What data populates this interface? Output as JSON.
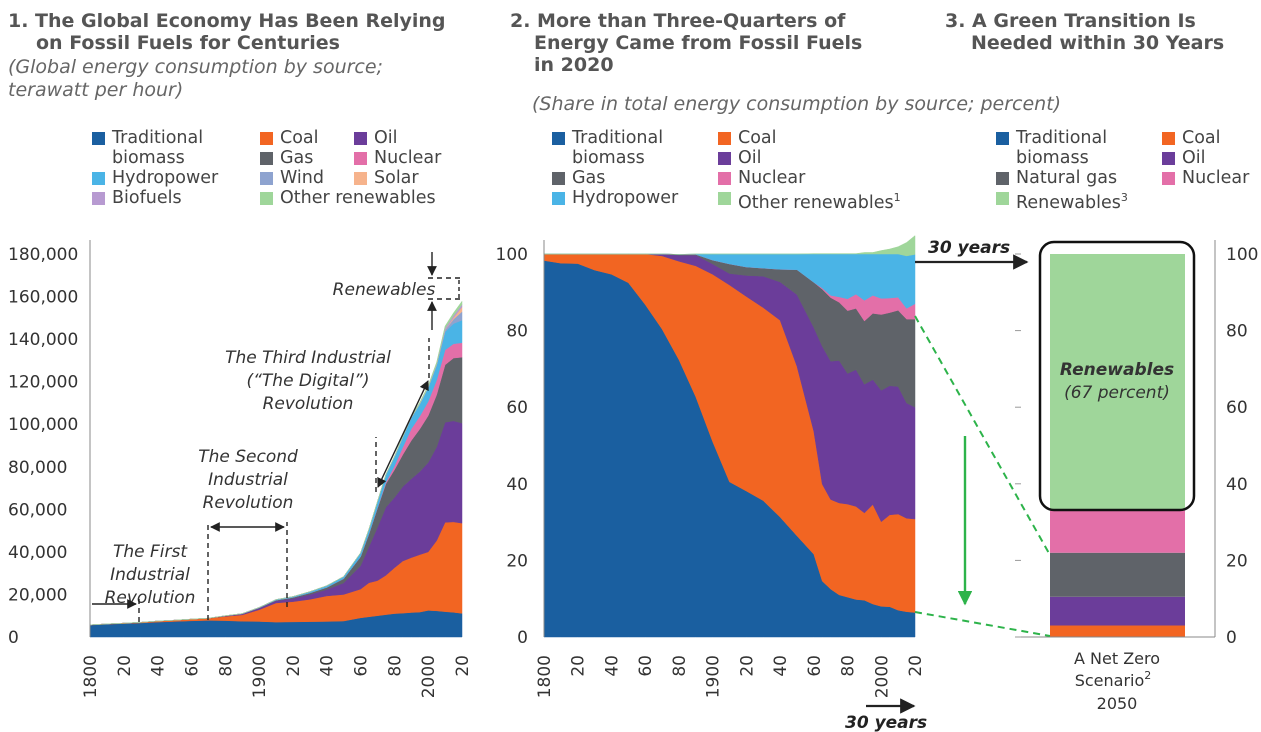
{
  "colors": {
    "traditional_biomass": "#1a5fa0",
    "coal": "#f26522",
    "oil": "#6b3d9a",
    "gas": "#5f6369",
    "nuclear": "#e36fa8",
    "hydropower": "#4ab4e6",
    "wind": "#8ea3cf",
    "solar": "#f6b38c",
    "biofuels": "#b79ad1",
    "other_renewables": "#9fd69a"
  },
  "panel1": {
    "title_line1": "1. The Global Economy Has Been Relying",
    "title_line2": "on Fossil Fuels for Centuries",
    "subtitle_line1": "(Global energy consumption by source;",
    "subtitle_line2": "terawatt per hour)",
    "legend": {
      "traditional_1": "Traditional",
      "traditional_2": "biomass",
      "coal": "Coal",
      "oil": "Oil",
      "gas": "Gas",
      "nuclear": "Nuclear",
      "hydropower": "Hydropower",
      "wind": "Wind",
      "solar": "Solar",
      "biofuels": "Biofuels",
      "other_renewables": "Other renewables"
    },
    "annotations": {
      "first_1": "The First",
      "first_2": "Industrial",
      "first_3": "Revolution",
      "second_1": "The Second",
      "second_2": "Industrial",
      "second_3": "Revolution",
      "third_1": "The Third Industrial",
      "third_2": "(“The Digital”)",
      "third_3": "Revolution",
      "renewables": "Renewables"
    }
  },
  "panel2": {
    "title_line1": "2. More than Three-Quarters of",
    "title_line2": "Energy Came from Fossil Fuels",
    "title_line3": "in 2020",
    "subtitle": "(Share in total energy consumption by source; percent)",
    "legend": {
      "traditional_1": "Traditional",
      "traditional_2": "biomass",
      "coal": "Coal",
      "oil": "Oil",
      "gas": "Gas",
      "nuclear": "Nuclear",
      "hydropower": "Hydropower",
      "other_renewables": "Other renewables",
      "other_renewables_sup": "1"
    },
    "arrow_label": "30 years"
  },
  "panel3": {
    "title_line1": "3. A Green Transition Is",
    "title_line2": "Needed within 30 Years",
    "legend": {
      "traditional_1": "Traditional",
      "traditional_2": "biomass",
      "coal": "Coal",
      "oil": "Oil",
      "natural_gas": "Natural gas",
      "nuclear": "Nuclear",
      "renewables": "Renewables",
      "renewables_sup": "3"
    },
    "arrow_label": "30 years",
    "bar_label_1": "Renewables",
    "bar_label_2": "(67 percent)",
    "x_label_1": "A Net Zero",
    "x_label_2": "Scenario",
    "x_label_sup": "2",
    "x_label_3": "2050"
  },
  "chart_data": [
    {
      "type": "area",
      "title": "1. The Global Economy Has Been Relying on Fossil Fuels for Centuries",
      "subtitle": "(Global energy consumption by source; terawatt per hour)",
      "stacked": true,
      "ylim": [
        0,
        180000
      ],
      "yticks": [
        "0",
        "20,000",
        "40,000",
        "60,000",
        "80,000",
        "100,000",
        "120,000",
        "140,000",
        "160,000",
        "180,000"
      ],
      "xticks": [
        "1800",
        "20",
        "40",
        "60",
        "80",
        "1900",
        "20",
        "40",
        "60",
        "80",
        "2000",
        "20"
      ],
      "x": [
        1800,
        1810,
        1820,
        1830,
        1840,
        1850,
        1860,
        1870,
        1880,
        1890,
        1900,
        1910,
        1920,
        1930,
        1940,
        1950,
        1960,
        1965,
        1970,
        1975,
        1980,
        1985,
        1990,
        1995,
        2000,
        2005,
        2010,
        2015,
        2020
      ],
      "series": [
        {
          "name": "Traditional biomass",
          "values": [
            5600,
            6000,
            6300,
            6600,
            7000,
            7300,
            7600,
            7800,
            7700,
            7400,
            7300,
            7000,
            7100,
            7200,
            7300,
            7500,
            9000,
            9500,
            10000,
            10500,
            11000,
            11200,
            11500,
            11700,
            12500,
            12300,
            11900,
            11600,
            11100
          ]
        },
        {
          "name": "Coal",
          "values": [
            100,
            150,
            200,
            300,
            500,
            600,
            800,
            1000,
            2000,
            3000,
            5500,
            9000,
            9500,
            10500,
            12000,
            12500,
            13500,
            16000,
            16500,
            18500,
            21500,
            24500,
            25800,
            27000,
            27500,
            33000,
            42000,
            42500,
            42400
          ]
        },
        {
          "name": "Oil",
          "values": [
            0,
            0,
            0,
            0,
            0,
            0,
            0,
            50,
            200,
            400,
            700,
            1000,
            1500,
            2300,
            3000,
            5400,
            11000,
            17000,
            25000,
            32000,
            33000,
            35000,
            37000,
            39000,
            42000,
            44000,
            47000,
            47500,
            47000
          ]
        },
        {
          "name": "Gas",
          "values": [
            0,
            0,
            0,
            0,
            0,
            0,
            0,
            0,
            50,
            100,
            200,
            300,
            500,
            700,
            1000,
            2000,
            4200,
            6000,
            9000,
            11000,
            13000,
            15000,
            18000,
            20000,
            22000,
            24500,
            27000,
            29500,
            31000
          ]
        },
        {
          "name": "Nuclear",
          "values": [
            0,
            0,
            0,
            0,
            0,
            0,
            0,
            0,
            0,
            0,
            0,
            0,
            0,
            0,
            0,
            0,
            5,
            50,
            150,
            700,
            1800,
            3500,
            5500,
            6000,
            6700,
            6900,
            7000,
            6700,
            6800
          ]
        },
        {
          "name": "Hydropower",
          "values": [
            0,
            0,
            0,
            0,
            0,
            0,
            0,
            0,
            50,
            100,
            200,
            300,
            400,
            600,
            800,
            1000,
            1800,
            2200,
            3000,
            3700,
            4300,
            4800,
            5200,
            5800,
            6500,
            7000,
            8500,
            9500,
            10600
          ]
        },
        {
          "name": "Wind",
          "values": [
            0,
            0,
            0,
            0,
            0,
            0,
            0,
            0,
            0,
            0,
            0,
            0,
            0,
            0,
            0,
            0,
            0,
            0,
            0,
            0,
            0,
            0,
            10,
            20,
            80,
            250,
            850,
            2100,
            4000
          ]
        },
        {
          "name": "Solar",
          "values": [
            0,
            0,
            0,
            0,
            0,
            0,
            0,
            0,
            0,
            0,
            0,
            0,
            0,
            0,
            0,
            0,
            0,
            0,
            0,
            0,
            0,
            0,
            0,
            0,
            5,
            10,
            80,
            650,
            2200
          ]
        },
        {
          "name": "Biofuels",
          "values": [
            0,
            0,
            0,
            0,
            0,
            0,
            0,
            0,
            0,
            0,
            0,
            0,
            0,
            0,
            0,
            0,
            0,
            0,
            0,
            0,
            50,
            100,
            150,
            150,
            200,
            350,
            800,
            1000,
            1100
          ]
        },
        {
          "name": "Other renewables",
          "values": [
            0,
            0,
            0,
            0,
            0,
            0,
            0,
            0,
            0,
            0,
            0,
            0,
            0,
            0,
            0,
            0,
            50,
            80,
            100,
            150,
            250,
            350,
            450,
            600,
            700,
            800,
            1000,
            1300,
            1600
          ]
        }
      ]
    },
    {
      "type": "area",
      "title": "2. More than Three-Quarters of Energy Came from Fossil Fuels in 2020",
      "subtitle": "(Share in total energy consumption by source; percent)",
      "stacked": true,
      "ylim": [
        0,
        100
      ],
      "yticks": [
        "0",
        "20",
        "40",
        "60",
        "80",
        "100"
      ],
      "xticks": [
        "1800",
        "20",
        "40",
        "60",
        "80",
        "1900",
        "20",
        "40",
        "60",
        "80",
        "2000",
        "20"
      ],
      "x": [
        1800,
        1810,
        1820,
        1830,
        1840,
        1850,
        1860,
        1870,
        1880,
        1890,
        1900,
        1910,
        1920,
        1930,
        1940,
        1950,
        1960,
        1965,
        1970,
        1975,
        1980,
        1985,
        1990,
        1995,
        2000,
        2005,
        2010,
        2015,
        2020
      ],
      "series": [
        {
          "name": "Traditional biomass",
          "values": [
            98.3,
            97.6,
            97.5,
            95.8,
            94.7,
            92.5,
            86.8,
            80.4,
            72.4,
            62.7,
            51.0,
            40.5,
            38.1,
            35.6,
            31.3,
            26.4,
            21.6,
            14.6,
            12.5,
            11.0,
            10.4,
            9.8,
            9.6,
            8.6,
            8.0,
            7.9,
            7.0,
            6.6,
            6.4
          ]
        },
        {
          "name": "Coal",
          "values": [
            1.7,
            2.4,
            2.5,
            4.2,
            5.3,
            7.5,
            13.2,
            19.1,
            25.7,
            34.2,
            43.7,
            51.4,
            50.8,
            50.4,
            51.4,
            44.3,
            32.1,
            25.3,
            23.4,
            24.0,
            24.3,
            24.3,
            22.8,
            26.0,
            22.1,
            24.0,
            25.1,
            24.4,
            24.4
          ]
        },
        {
          "name": "Oil",
          "values": [
            0,
            0,
            0,
            0,
            0,
            0,
            0,
            0.5,
            1.6,
            2.8,
            2.7,
            3.0,
            5.5,
            8.2,
            10.0,
            18.7,
            27.1,
            36.0,
            36.1,
            37.2,
            34.1,
            35.7,
            33.6,
            32.6,
            34.3,
            33.7,
            33.3,
            30.1,
            29.2
          ]
        },
        {
          "name": "Gas",
          "values": [
            0,
            0,
            0,
            0,
            0,
            0,
            0,
            0,
            0.2,
            0.2,
            1.0,
            2.5,
            2.2,
            2.1,
            3.3,
            6.5,
            11.8,
            14.9,
            16.6,
            15.2,
            16.4,
            16.0,
            16.5,
            17.3,
            19.8,
            19.1,
            19.9,
            21.9,
            23.0
          ]
        },
        {
          "name": "Nuclear",
          "values": [
            0,
            0,
            0,
            0,
            0,
            0,
            0,
            0,
            0,
            0,
            0,
            0,
            0,
            0,
            0,
            0,
            0,
            0.3,
            0.6,
            1.4,
            3.1,
            3.7,
            5.4,
            4.7,
            4.2,
            3.8,
            3.4,
            2.8,
            4.0
          ]
        },
        {
          "name": "Hydropower",
          "values": [
            0,
            0,
            0,
            0,
            0,
            0,
            0,
            0,
            0,
            0.1,
            1.6,
            2.6,
            3.4,
            3.7,
            4.0,
            4.1,
            7.4,
            8.9,
            10.8,
            11.2,
            11.7,
            10.5,
            12.1,
            10.8,
            11.6,
            11.5,
            11.3,
            13.7,
            12.9
          ]
        },
        {
          "name": "Other renewables",
          "values": [
            0,
            0,
            0,
            0,
            0,
            0,
            0,
            0,
            0,
            0,
            0,
            0,
            0,
            0,
            0,
            0,
            0.1,
            0.1,
            0.1,
            0.1,
            0.1,
            0.1,
            0.4,
            0.4,
            0.9,
            1.3,
            1.9,
            3.5,
            4.9
          ]
        }
      ]
    },
    {
      "type": "bar",
      "title": "3. A Green Transition Is Needed within 30 Years",
      "stacked": true,
      "categories": [
        "A Net Zero Scenario 2050"
      ],
      "ylim": [
        0,
        100
      ],
      "yticks": [
        "0",
        "20",
        "40",
        "60",
        "80",
        "100"
      ],
      "series": [
        {
          "name": "Traditional biomass",
          "values": [
            0
          ]
        },
        {
          "name": "Coal",
          "values": [
            3
          ]
        },
        {
          "name": "Oil",
          "values": [
            7.5
          ]
        },
        {
          "name": "Natural gas",
          "values": [
            11.5
          ]
        },
        {
          "name": "Nuclear",
          "values": [
            11
          ]
        },
        {
          "name": "Renewables",
          "values": [
            67
          ]
        }
      ],
      "annotations": [
        "Renewables",
        "(67 percent)"
      ]
    }
  ]
}
